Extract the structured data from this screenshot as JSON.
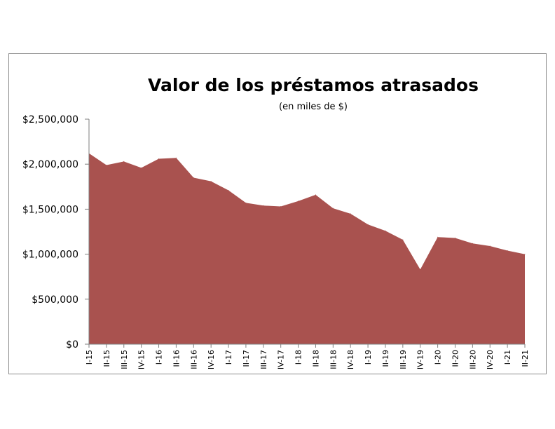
{
  "chart_data": {
    "type": "area",
    "title": "Valor de los préstamos atrasados",
    "subtitle": "(en miles de $)",
    "xlabel": "",
    "ylabel": "",
    "categories": [
      "I-15",
      "II-15",
      "III-15",
      "IV-15",
      "I-16",
      "II-16",
      "III-16",
      "IV-16",
      "I-17",
      "II-17",
      "III-17",
      "IV-17",
      "I-18",
      "II-18",
      "III-18",
      "IV-18",
      "I-19",
      "II-19",
      "III-19",
      "IV-19",
      "I-20",
      "II-20",
      "III-20",
      "IV-20",
      "I-21",
      "II-21"
    ],
    "values": [
      2120000,
      1990000,
      2030000,
      1960000,
      2060000,
      2070000,
      1850000,
      1810000,
      1710000,
      1570000,
      1540000,
      1530000,
      1590000,
      1660000,
      1510000,
      1450000,
      1330000,
      1260000,
      1160000,
      830000,
      1190000,
      1180000,
      1120000,
      1090000,
      1040000,
      1000000
    ],
    "ylim": [
      0,
      2500000
    ],
    "yticks": [
      0,
      500000,
      1000000,
      1500000,
      2000000,
      2500000
    ],
    "ytick_labels": [
      "$0",
      "$500,000",
      "$1,000,000",
      "$1,500,000",
      "$2,000,000",
      "$2,500,000"
    ],
    "grid": false,
    "legend": "none",
    "color": "#a9524f"
  }
}
